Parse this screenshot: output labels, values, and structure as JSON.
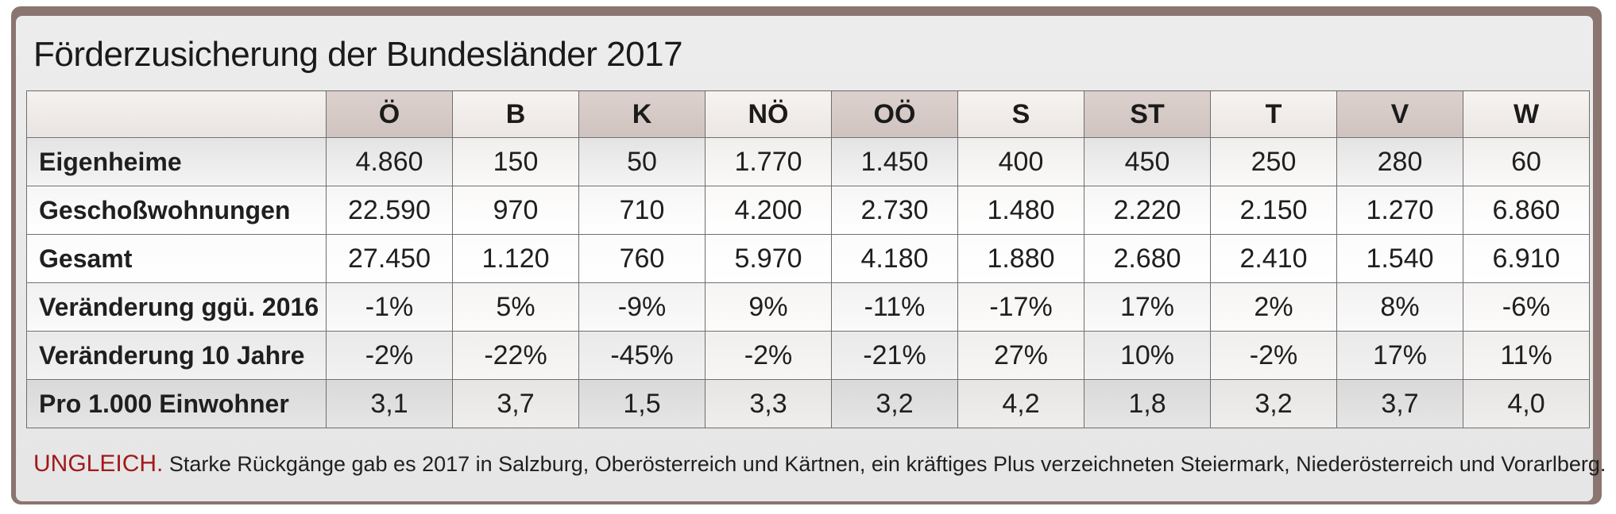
{
  "chart_data": {
    "type": "table",
    "title": "Förderzusicherung der Bundesländer 2017",
    "columns": [
      "Ö",
      "B",
      "K",
      "NÖ",
      "OÖ",
      "S",
      "ST",
      "T",
      "V",
      "W"
    ],
    "rows": [
      {
        "label": "Eigenheime",
        "values": [
          "4.860",
          "150",
          "50",
          "1.770",
          "1.450",
          "400",
          "450",
          "250",
          "280",
          "60"
        ]
      },
      {
        "label": "Geschoßwohnungen",
        "values": [
          "22.590",
          "970",
          "710",
          "4.200",
          "2.730",
          "1.480",
          "2.220",
          "2.150",
          "1.270",
          "6.860"
        ]
      },
      {
        "label": "Gesamt",
        "values": [
          "27.450",
          "1.120",
          "760",
          "5.970",
          "4.180",
          "1.880",
          "2.680",
          "2.410",
          "1.540",
          "6.910"
        ]
      },
      {
        "label": "Veränderung ggü. 2016",
        "values": [
          "-1%",
          "5%",
          "-9%",
          "9%",
          "-11%",
          "-17%",
          "17%",
          "2%",
          "8%",
          "-6%"
        ]
      },
      {
        "label": "Veränderung 10 Jahre",
        "values": [
          "-2%",
          "-22%",
          "-45%",
          "-2%",
          "-21%",
          "27%",
          "10%",
          "-2%",
          "17%",
          "11%"
        ]
      },
      {
        "label": "Pro 1.000 Einwohner",
        "values": [
          "3,1",
          "3,7",
          "1,5",
          "3,3",
          "3,2",
          "4,2",
          "1,8",
          "3,2",
          "3,7",
          "4,0"
        ]
      }
    ],
    "caption": {
      "kicker": "UNGLEICH.",
      "text": "Starke Rückgänge gab es 2017 in Salzburg, Oberösterreich und Kärtnen, ein kräftiges Plus verzeichneten Steiermark, Niederösterreich und Vorarlberg."
    }
  },
  "colors": {
    "frame": "#8a7570",
    "header_shade": "#cfc3bf",
    "kicker": "#a11a1a"
  }
}
